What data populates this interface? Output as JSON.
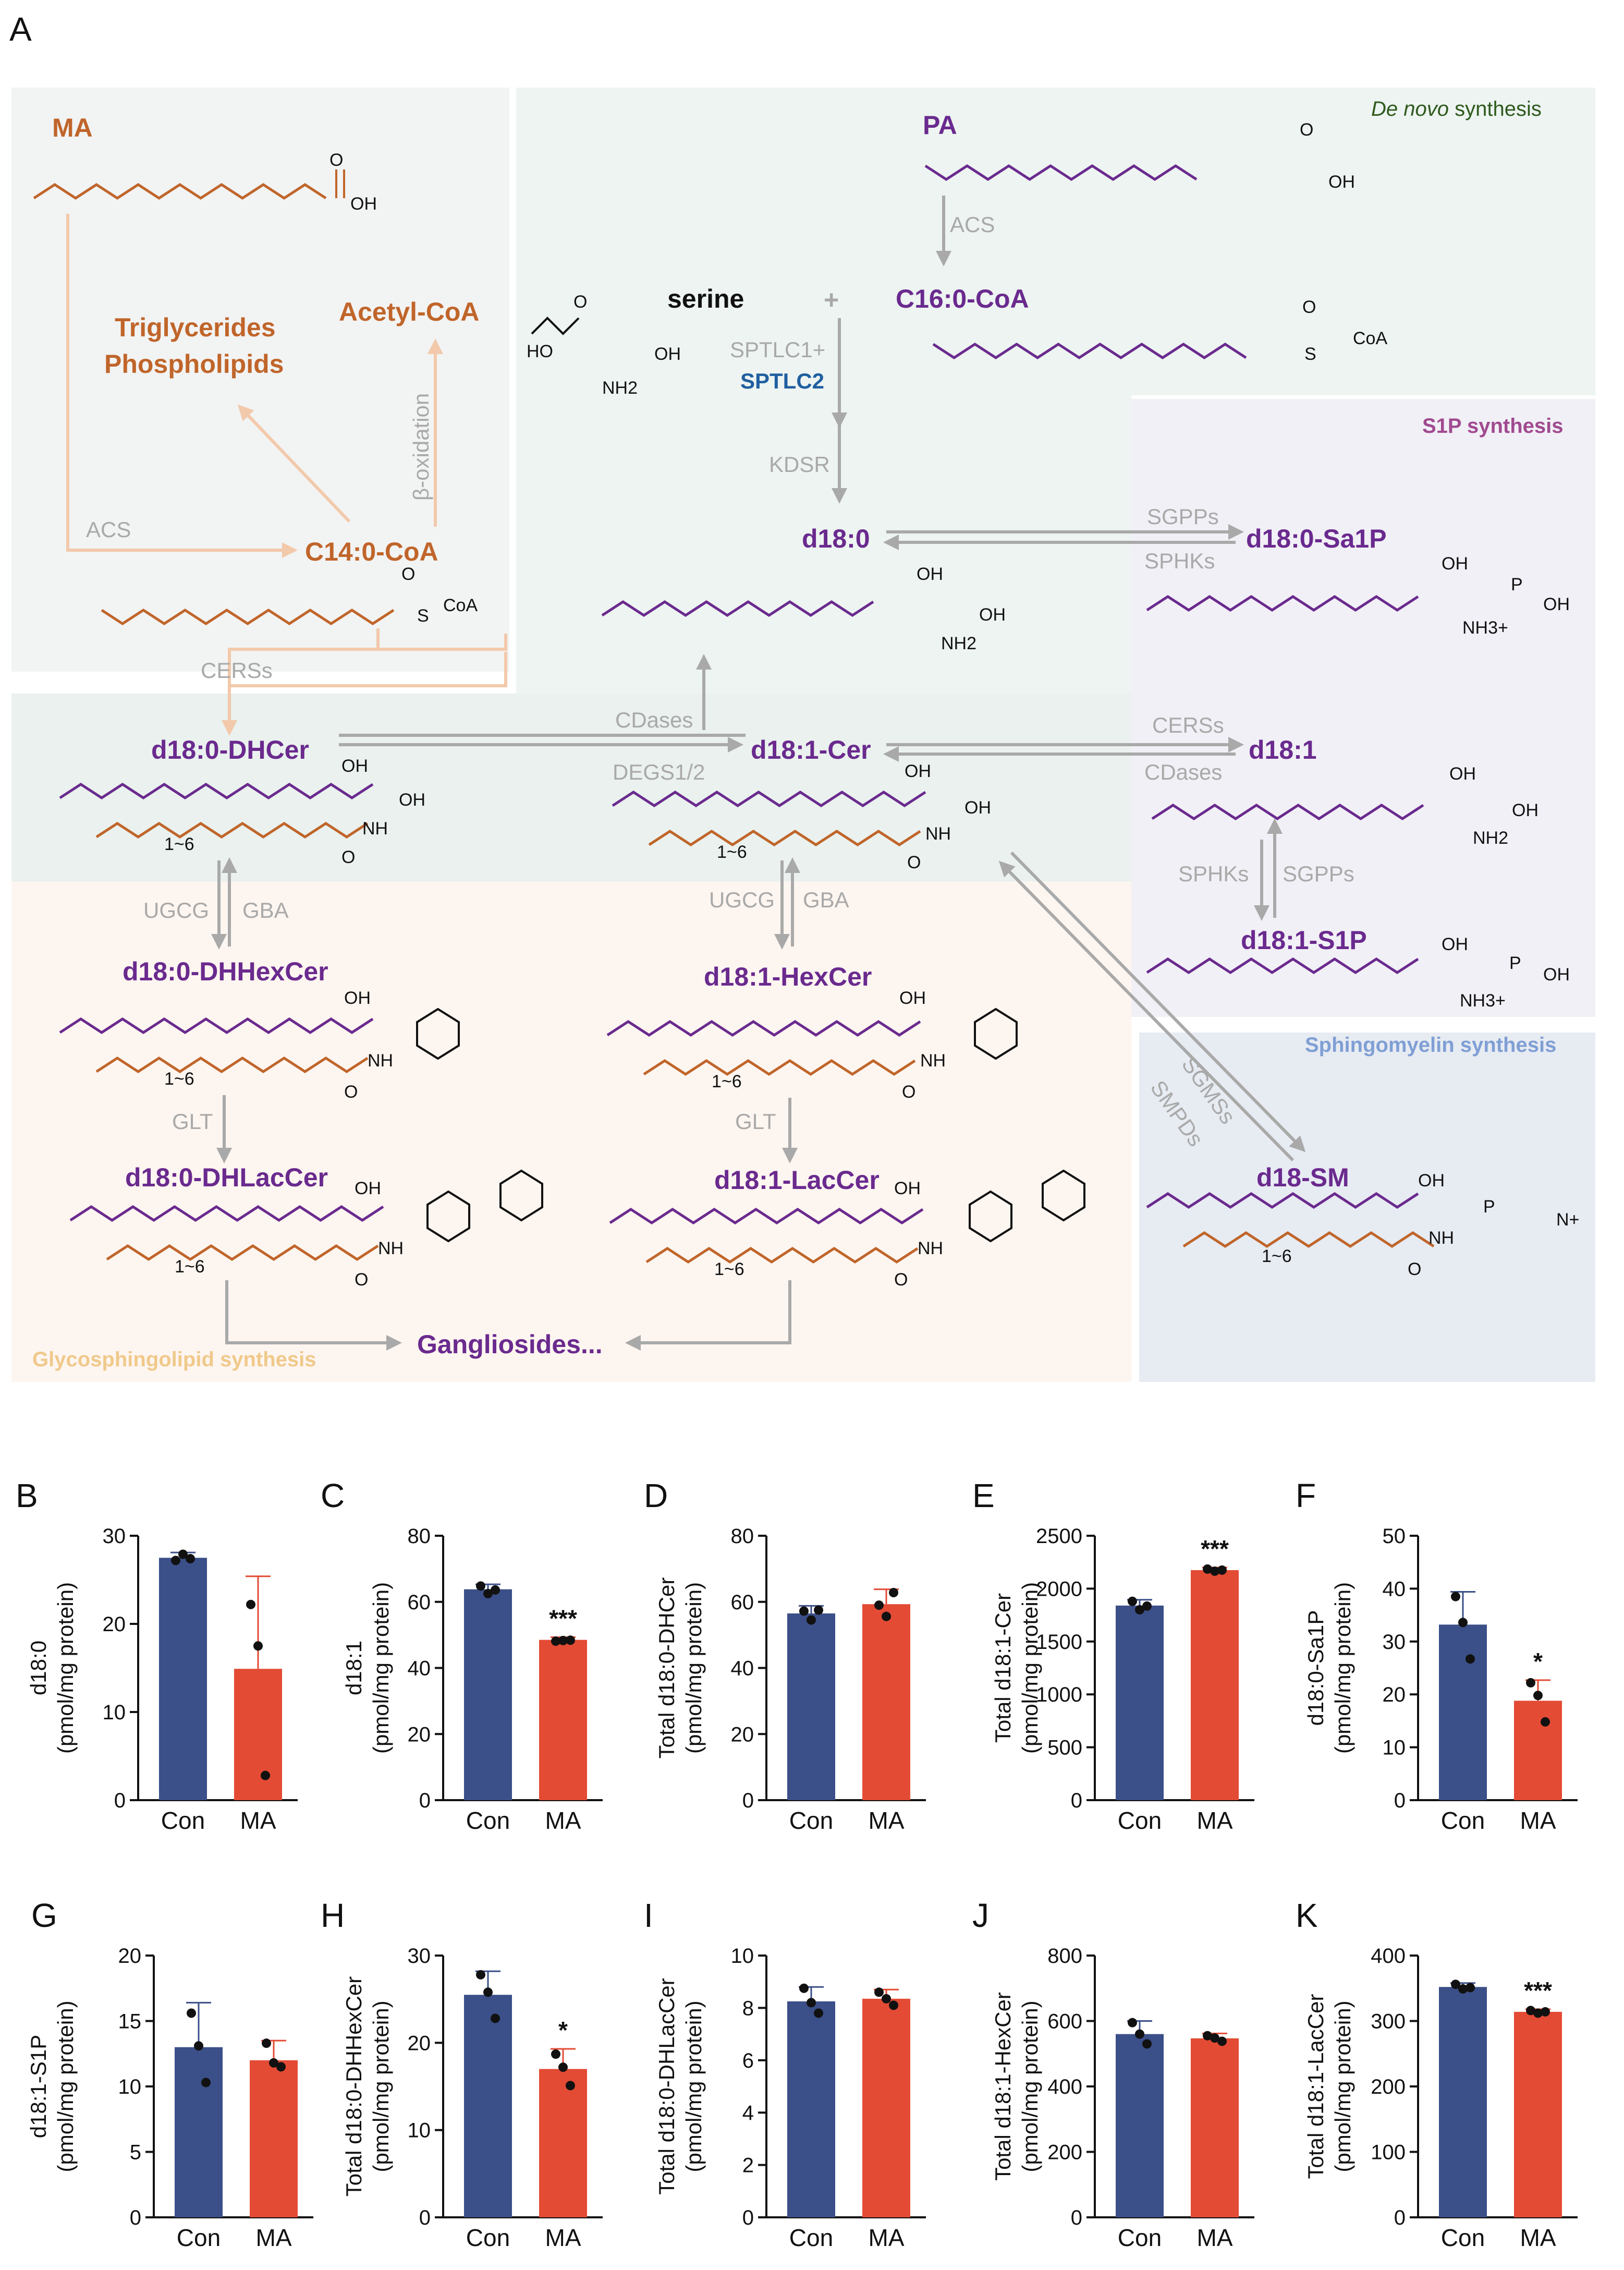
{
  "panel_A": {
    "letter": "A",
    "regions": {
      "de_novo_italic": "De novo",
      "de_novo_rest": " synthesis",
      "s1p": "S1P synthesis",
      "sphingomyelin": "Sphingomyelin synthesis",
      "glyco": "Glycosphingolipid synthesis"
    },
    "metabolites": {
      "ma": "MA",
      "pa": "PA",
      "serine": "serine",
      "plus": "+",
      "c16coa": "C16:0-CoA",
      "triglycerides": "Triglycerides",
      "phospholipids": "Phospholipids",
      "acetylcoa": "Acetyl-CoA",
      "c14coa": "C14:0-CoA",
      "d180": "d18:0",
      "d180sa1p": "d18:0-Sa1P",
      "d180dhcer": "d18:0-DHCer",
      "d181cer": "d18:1-Cer",
      "d181": "d18:1",
      "d181s1p": "d18:1-S1P",
      "d180dhhexcer": "d18:0-DHHexCer",
      "d181hexcer": "d18:1-HexCer",
      "d180dhlaccer": "d18:0-DHLacCer",
      "d181laccer": "d18:1-LacCer",
      "d18sm": "d18-SM",
      "gangliosides": "Gangliosides..."
    },
    "enzymes": {
      "acs_pa": "ACS",
      "sptlc1": "SPTLC1+",
      "sptlc2": "SPTLC2",
      "kdsr": "KDSR",
      "acs_ma": "ACS",
      "beta_ox": "β-oxidation",
      "sgpps_top": "SGPPs",
      "sphks_top": "SPHKs",
      "cerss_left": "CERSs",
      "cdases_mid": "CDases",
      "degs": "DEGS1/2",
      "cerss_right": "CERSs",
      "cdases_right": "CDases",
      "sphks_mid": "SPHKs",
      "sgpps_mid": "SGPPs",
      "ugcg_l": "UGCG",
      "gba_l": "GBA",
      "ugcg_m": "UGCG",
      "gba_m": "GBA",
      "glt_l": "GLT",
      "glt_m": "GLT",
      "sgmss": "SGMSs",
      "smpds": "SMPDs"
    },
    "atoms": {
      "o": "O",
      "oh": "OH",
      "ho": "HO",
      "nh2": "NH2",
      "nh": "NH",
      "nh3": "NH3+",
      "s": "S",
      "coa": "CoA",
      "p": "P",
      "n": "N+",
      "rep": "1~6"
    },
    "colors": {
      "ma": "#c0652a",
      "pa": "#6a2a8e",
      "enzyme": "#a9a9a9",
      "sptlc2": "#1f5fa0",
      "s1p_region": "#a04a90",
      "sm_region": "#7f9fd4",
      "glyco_region": "#f0c98a",
      "de_novo_region": "#2f5a1e",
      "bg_ma": "#f2f3f3",
      "bg_denovo": "#edf4f1",
      "bg_s1p": "#f1f0f6",
      "bg_sm": "#e7ebf2",
      "bg_glyco": "#fdf5f0",
      "bg_dhcer": "#eaf1ee"
    }
  },
  "chart_colors": {
    "con": "#3b4f88",
    "ma": "#e34b34"
  },
  "chart_data": [
    {
      "panel": "B",
      "type": "bar",
      "ylabel": "d18:0",
      "ylabel2": "(pmol/mg protein)",
      "categories": [
        "Con",
        "MA"
      ],
      "values": [
        27.5,
        14.9
      ],
      "errors": [
        0.6,
        10.5
      ],
      "points": [
        [
          27.2,
          27.9,
          27.4
        ],
        [
          22.2,
          17.5,
          2.8
        ]
      ],
      "ylim": [
        0,
        30
      ],
      "yticks": [
        0,
        10,
        20,
        30
      ],
      "yticklabels": [
        "0",
        "10",
        "20",
        "30"
      ],
      "sig": ""
    },
    {
      "panel": "C",
      "type": "bar",
      "ylabel": "d18:1",
      "ylabel2": "(pmol/mg protein)",
      "categories": [
        "Con",
        "MA"
      ],
      "values": [
        63.8,
        48.5
      ],
      "errors": [
        1.5,
        0.8
      ],
      "points": [
        [
          64.8,
          62.5,
          63.6
        ],
        [
          48.1,
          48.3,
          48.4
        ]
      ],
      "ylim": [
        0,
        80
      ],
      "yticks": [
        0,
        20,
        40,
        60,
        80
      ],
      "yticklabels": [
        "0",
        "20",
        "40",
        "60",
        "80"
      ],
      "sig": "***"
    },
    {
      "panel": "D",
      "type": "bar",
      "ylabel": "Total d18:0-DHCer",
      "ylabel2": "(pmol/mg protein)",
      "categories": [
        "Con",
        "MA"
      ],
      "values": [
        56.5,
        59.3
      ],
      "errors": [
        2.3,
        4.5
      ],
      "points": [
        [
          57.2,
          54.5,
          57.5
        ],
        [
          59.0,
          55.6,
          62.8
        ]
      ],
      "ylim": [
        0,
        80
      ],
      "yticks": [
        0,
        20,
        40,
        60,
        80
      ],
      "yticklabels": [
        "0",
        "20",
        "40",
        "60",
        "80"
      ],
      "sig": ""
    },
    {
      "panel": "E",
      "type": "bar",
      "ylabel": "Total d18:1-Cer",
      "ylabel2": "(pmol/mg protein)",
      "categories": [
        "Con",
        "MA"
      ],
      "values": [
        1840,
        2175
      ],
      "errors": [
        55,
        25
      ],
      "points": [
        [
          1880,
          1800,
          1835
        ],
        [
          2185,
          2165,
          2175
        ]
      ],
      "ylim": [
        0,
        2500
      ],
      "yticks": [
        0,
        500,
        1000,
        1500,
        2000,
        2500
      ],
      "yticklabels": [
        "0",
        "500",
        "1000",
        "1500",
        "2000",
        "2500"
      ],
      "sig": "***"
    },
    {
      "panel": "F",
      "type": "bar",
      "ylabel": "d18:0-Sa1P",
      "ylabel2": "(pmol/mg protein)",
      "categories": [
        "Con",
        "MA"
      ],
      "values": [
        33.2,
        18.8
      ],
      "errors": [
        6.2,
        3.9
      ],
      "points": [
        [
          38.5,
          33.6,
          26.7
        ],
        [
          22.2,
          19.8,
          14.8
        ]
      ],
      "ylim": [
        0,
        50
      ],
      "yticks": [
        0,
        10,
        20,
        30,
        40,
        50
      ],
      "yticklabels": [
        "0",
        "10",
        "20",
        "30",
        "40",
        "50"
      ],
      "sig": "*"
    },
    {
      "panel": "G",
      "type": "bar",
      "ylabel": "d18:1-S1P",
      "ylabel2": "(pmol/mg protein)",
      "categories": [
        "Con",
        "MA"
      ],
      "values": [
        13.0,
        12.0
      ],
      "errors": [
        3.4,
        1.5
      ],
      "points": [
        [
          15.6,
          13.1,
          10.3
        ],
        [
          13.3,
          11.8,
          11.5
        ]
      ],
      "ylim": [
        0,
        20
      ],
      "yticks": [
        0,
        5,
        10,
        15,
        20
      ],
      "yticklabels": [
        "0",
        "5",
        "10",
        "15",
        "20"
      ],
      "sig": ""
    },
    {
      "panel": "H",
      "type": "bar",
      "ylabel": "Total d18:0-DHHexCer",
      "ylabel2": "(pmol/mg protein)",
      "categories": [
        "Con",
        "MA"
      ],
      "values": [
        25.5,
        17.0
      ],
      "errors": [
        2.7,
        2.3
      ],
      "points": [
        [
          27.8,
          25.8,
          22.8
        ],
        [
          18.7,
          17.2,
          15.1
        ]
      ],
      "ylim": [
        0,
        30
      ],
      "yticks": [
        0,
        10,
        20,
        30
      ],
      "yticklabels": [
        "0",
        "10",
        "20",
        "30"
      ],
      "sig": "*"
    },
    {
      "panel": "I",
      "type": "bar",
      "ylabel": "Total d18:0-DHLacCer",
      "ylabel2": "(pmol/mg protein)",
      "categories": [
        "Con",
        "MA"
      ],
      "values": [
        8.25,
        8.35
      ],
      "errors": [
        0.55,
        0.35
      ],
      "points": [
        [
          8.75,
          8.2,
          7.8
        ],
        [
          8.6,
          8.35,
          8.1
        ]
      ],
      "ylim": [
        0,
        10
      ],
      "yticks": [
        0,
        2,
        4,
        6,
        8,
        10
      ],
      "yticklabels": [
        "0",
        "2",
        "4",
        "6",
        "8",
        "10"
      ],
      "sig": ""
    },
    {
      "panel": "J",
      "type": "bar",
      "ylabel": "Total d18:1-HexCer",
      "ylabel2": "(pmol/mg protein)",
      "categories": [
        "Con",
        "MA"
      ],
      "values": [
        560,
        547
      ],
      "errors": [
        40,
        15
      ],
      "points": [
        [
          595,
          560,
          530
        ],
        [
          555,
          548,
          538
        ]
      ],
      "ylim": [
        0,
        800
      ],
      "yticks": [
        0,
        200,
        400,
        600,
        800
      ],
      "yticklabels": [
        "0",
        "200",
        "400",
        "600",
        "800"
      ],
      "sig": ""
    },
    {
      "panel": "K",
      "type": "bar",
      "ylabel": "Total d18:1-LacCer",
      "ylabel2": "(pmol/mg protein)",
      "categories": [
        "Con",
        "MA"
      ],
      "values": [
        352,
        314
      ],
      "errors": [
        6,
        4
      ],
      "points": [
        [
          356,
          349,
          351
        ],
        [
          316,
          312,
          314
        ]
      ],
      "ylim": [
        0,
        400
      ],
      "yticks": [
        0,
        100,
        200,
        300,
        400
      ],
      "yticklabels": [
        "0",
        "100",
        "200",
        "300",
        "400"
      ],
      "sig": "***"
    }
  ]
}
